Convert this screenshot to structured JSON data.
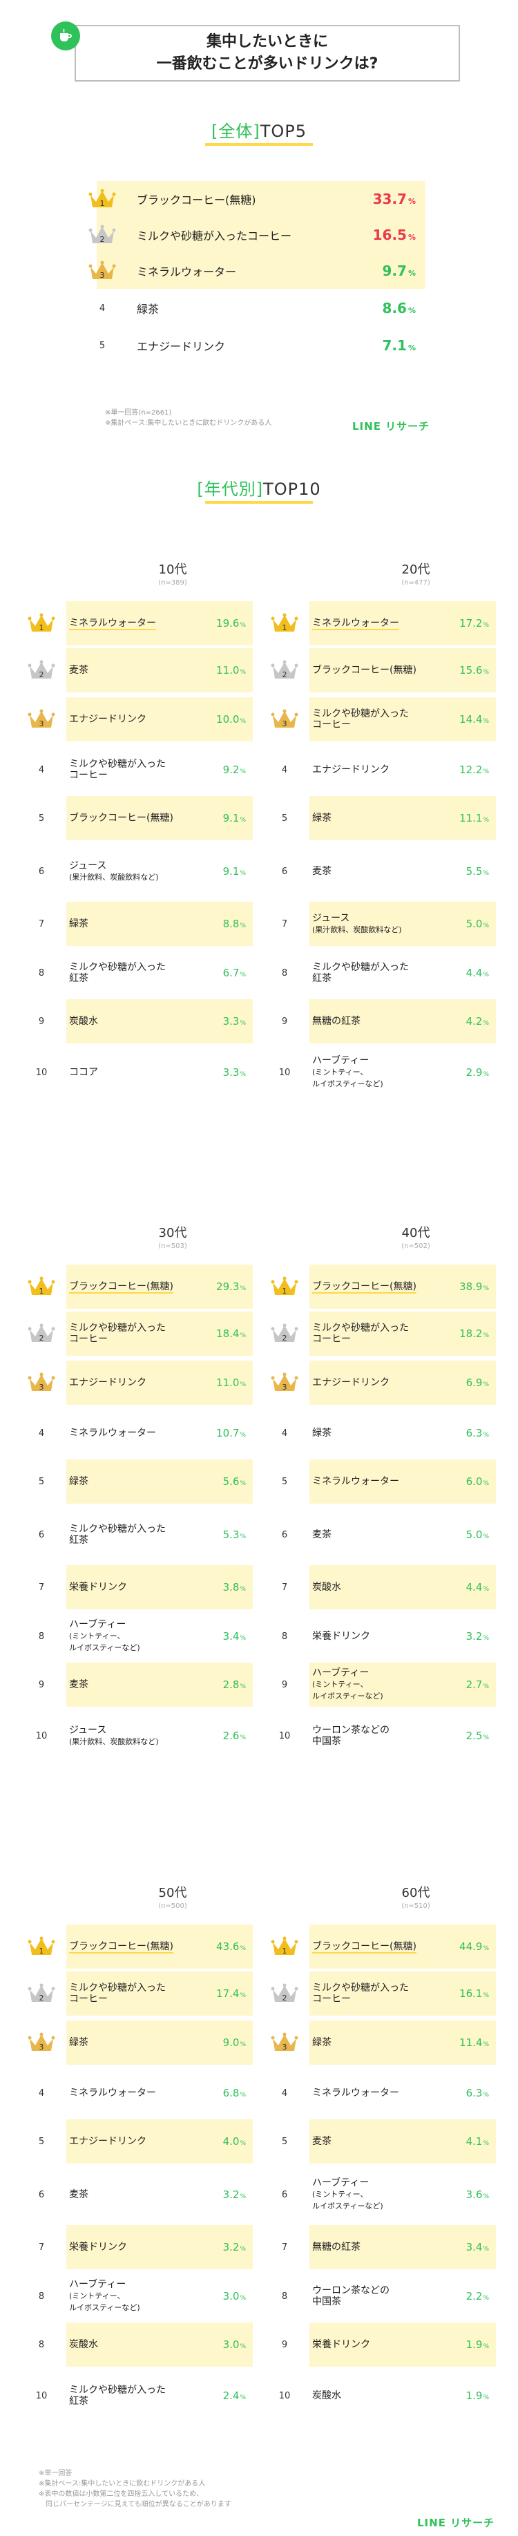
{
  "colors": {
    "green": "#2fc15a",
    "red": "#e8394e",
    "yellow": "#fff7cc",
    "gold": "#f2be1c",
    "silver": "#c6c6c6",
    "bronze": "#e8b64b"
  },
  "header": {
    "line1": "集中したいときに",
    "line2": "一番飲むことが多いドリンクは?"
  },
  "overall": {
    "title_bracket": "[全体]",
    "title": "TOP5",
    "rows": [
      {
        "rank": "1",
        "label": "ブラックコーヒー(無糖)",
        "value": "33.7",
        "unit": "%"
      },
      {
        "rank": "2",
        "label": "ミルクや砂糖が入ったコーヒー",
        "value": "16.5",
        "unit": "%"
      },
      {
        "rank": "3",
        "label": "ミネラルウォーター",
        "value": "9.7",
        "unit": "%"
      },
      {
        "rank": "4",
        "label": "緑茶",
        "value": "8.6",
        "unit": "%"
      },
      {
        "rank": "5",
        "label": "エナジードリンク",
        "value": "7.1",
        "unit": "%"
      }
    ],
    "notes": [
      "※単一回答(n=2661)",
      "※集計ベース:集中したいときに飲むドリンクがある人"
    ],
    "logo": "LINE リサーチ"
  },
  "age": {
    "title_bracket": "[年代別]",
    "title": "TOP10",
    "groups": [
      {
        "name": "10代",
        "n": "(n=389)",
        "rows": [
          {
            "rank": "1",
            "label": "ミネラルウォーター",
            "sub": "",
            "value": "19.6"
          },
          {
            "rank": "2",
            "label": "麦茶",
            "sub": "",
            "value": "11.0"
          },
          {
            "rank": "3",
            "label": "エナジードリンク",
            "sub": "",
            "value": "10.0"
          },
          {
            "rank": "4",
            "label": "ミルクや砂糖が入った",
            "sub": "コーヒー",
            "value": "9.2"
          },
          {
            "rank": "5",
            "label": "ブラックコーヒー(無糖)",
            "sub": "",
            "value": "9.1"
          },
          {
            "rank": "6",
            "label": "ジュース",
            "sub": "(果汁飲料、炭酸飲料など)",
            "value": "9.1"
          },
          {
            "rank": "7",
            "label": "緑茶",
            "sub": "",
            "value": "8.8"
          },
          {
            "rank": "8",
            "label": "ミルクや砂糖が入った",
            "sub": "紅茶",
            "value": "6.7"
          },
          {
            "rank": "9",
            "label": "炭酸水",
            "sub": "",
            "value": "3.3"
          },
          {
            "rank": "10",
            "label": "ココア",
            "sub": "",
            "value": "3.3"
          }
        ]
      },
      {
        "name": "20代",
        "n": "(n=477)",
        "rows": [
          {
            "rank": "1",
            "label": "ミネラルウォーター",
            "sub": "",
            "value": "17.2"
          },
          {
            "rank": "2",
            "label": "ブラックコーヒー(無糖)",
            "sub": "",
            "value": "15.6"
          },
          {
            "rank": "3",
            "label": "ミルクや砂糖が入った",
            "sub": "コーヒー",
            "value": "14.4"
          },
          {
            "rank": "4",
            "label": "エナジードリンク",
            "sub": "",
            "value": "12.2"
          },
          {
            "rank": "5",
            "label": "緑茶",
            "sub": "",
            "value": "11.1"
          },
          {
            "rank": "6",
            "label": "麦茶",
            "sub": "",
            "value": "5.5"
          },
          {
            "rank": "7",
            "label": "ジュース",
            "sub": "(果汁飲料、炭酸飲料など)",
            "value": "5.0"
          },
          {
            "rank": "8",
            "label": "ミルクや砂糖が入った",
            "sub": "紅茶",
            "value": "4.4"
          },
          {
            "rank": "9",
            "label": "無糖の紅茶",
            "sub": "",
            "value": "4.2"
          },
          {
            "rank": "10",
            "label": "ハーブティー",
            "sub": "(ミントティー、|ルイボスティーなど)",
            "value": "2.9"
          }
        ]
      },
      {
        "name": "30代",
        "n": "(n=503)",
        "rows": [
          {
            "rank": "1",
            "label": "ブラックコーヒー(無糖)",
            "sub": "",
            "value": "29.3"
          },
          {
            "rank": "2",
            "label": "ミルクや砂糖が入った",
            "sub": "コーヒー",
            "value": "18.4"
          },
          {
            "rank": "3",
            "label": "エナジードリンク",
            "sub": "",
            "value": "11.0"
          },
          {
            "rank": "4",
            "label": "ミネラルウォーター",
            "sub": "",
            "value": "10.7"
          },
          {
            "rank": "5",
            "label": "緑茶",
            "sub": "",
            "value": "5.6"
          },
          {
            "rank": "6",
            "label": "ミルクや砂糖が入った",
            "sub": "紅茶",
            "value": "5.3"
          },
          {
            "rank": "7",
            "label": "栄養ドリンク",
            "sub": "",
            "value": "3.8"
          },
          {
            "rank": "8",
            "label": "ハーブティー",
            "sub": "(ミントティー、|ルイボスティーなど)",
            "value": "3.4"
          },
          {
            "rank": "9",
            "label": "麦茶",
            "sub": "",
            "value": "2.8"
          },
          {
            "rank": "10",
            "label": "ジュース",
            "sub": "(果汁飲料、炭酸飲料など)",
            "value": "2.6"
          }
        ]
      },
      {
        "name": "40代",
        "n": "(n=502)",
        "rows": [
          {
            "rank": "1",
            "label": "ブラックコーヒー(無糖)",
            "sub": "",
            "value": "38.9"
          },
          {
            "rank": "2",
            "label": "ミルクや砂糖が入った",
            "sub": "コーヒー",
            "value": "18.2"
          },
          {
            "rank": "3",
            "label": "エナジードリンク",
            "sub": "",
            "value": "6.9"
          },
          {
            "rank": "4",
            "label": "緑茶",
            "sub": "",
            "value": "6.3"
          },
          {
            "rank": "5",
            "label": "ミネラルウォーター",
            "sub": "",
            "value": "6.0"
          },
          {
            "rank": "6",
            "label": "麦茶",
            "sub": "",
            "value": "5.0"
          },
          {
            "rank": "7",
            "label": "炭酸水",
            "sub": "",
            "value": "4.4"
          },
          {
            "rank": "8",
            "label": "栄養ドリンク",
            "sub": "",
            "value": "3.2"
          },
          {
            "rank": "9",
            "label": "ハーブティー",
            "sub": "(ミントティー、|ルイボスティーなど)",
            "value": "2.7"
          },
          {
            "rank": "10",
            "label": "ウーロン茶などの",
            "sub": "中国茶",
            "value": "2.5"
          }
        ]
      },
      {
        "name": "50代",
        "n": "(n=500)",
        "rows": [
          {
            "rank": "1",
            "label": "ブラックコーヒー(無糖)",
            "sub": "",
            "value": "43.6"
          },
          {
            "rank": "2",
            "label": "ミルクや砂糖が入った",
            "sub": "コーヒー",
            "value": "17.4"
          },
          {
            "rank": "3",
            "label": "緑茶",
            "sub": "",
            "value": "9.0"
          },
          {
            "rank": "4",
            "label": "ミネラルウォーター",
            "sub": "",
            "value": "6.8"
          },
          {
            "rank": "5",
            "label": "エナジードリンク",
            "sub": "",
            "value": "4.0"
          },
          {
            "rank": "6",
            "label": "麦茶",
            "sub": "",
            "value": "3.2"
          },
          {
            "rank": "7",
            "label": "栄養ドリンク",
            "sub": "",
            "value": "3.2"
          },
          {
            "rank": "8",
            "label": "ハーブティー",
            "sub": "(ミントティー、|ルイボスティーなど)",
            "value": "3.0"
          },
          {
            "rank": "8",
            "label": "炭酸水",
            "sub": "",
            "value": "3.0"
          },
          {
            "rank": "10",
            "label": "ミルクや砂糖が入った",
            "sub": "紅茶",
            "value": "2.4"
          }
        ]
      },
      {
        "name": "60代",
        "n": "(n=510)",
        "rows": [
          {
            "rank": "1",
            "label": "ブラックコーヒー(無糖)",
            "sub": "",
            "value": "44.9"
          },
          {
            "rank": "2",
            "label": "ミルクや砂糖が入った",
            "sub": "コーヒー",
            "value": "16.1"
          },
          {
            "rank": "3",
            "label": "緑茶",
            "sub": "",
            "value": "11.4"
          },
          {
            "rank": "4",
            "label": "ミネラルウォーター",
            "sub": "",
            "value": "6.3"
          },
          {
            "rank": "5",
            "label": "麦茶",
            "sub": "",
            "value": "4.1"
          },
          {
            "rank": "6",
            "label": "ハーブティー",
            "sub": "(ミントティー、|ルイボスティーなど)",
            "value": "3.6"
          },
          {
            "rank": "7",
            "label": "無糖の紅茶",
            "sub": "",
            "value": "3.4"
          },
          {
            "rank": "8",
            "label": "ウーロン茶などの",
            "sub": "中国茶",
            "value": "2.2"
          },
          {
            "rank": "9",
            "label": "栄養ドリンク",
            "sub": "",
            "value": "1.9"
          },
          {
            "rank": "10",
            "label": "炭酸水",
            "sub": "",
            "value": "1.9"
          }
        ]
      }
    ],
    "notes": [
      "※単一回答",
      "※集計ベース:集中したいときに飲むドリンクがある人",
      "※表中の数値は小数第二位を四捨五入しているため、",
      "　同じパーセンテージに見えても順位が異なることがあります"
    ],
    "logo": "LINE リサーチ"
  },
  "chart_data": [
    {
      "type": "table",
      "title": "[全体] TOP5",
      "categories": [
        "ブラックコーヒー(無糖)",
        "ミルクや砂糖が入ったコーヒー",
        "ミネラルウォーター",
        "緑茶",
        "エナジードリンク"
      ],
      "values": [
        33.7,
        16.5,
        9.7,
        8.6,
        7.1
      ]
    },
    {
      "type": "table",
      "title": "10代",
      "values": [
        19.6,
        11.0,
        10.0,
        9.2,
        9.1,
        9.1,
        8.8,
        6.7,
        3.3,
        3.3
      ]
    },
    {
      "type": "table",
      "title": "20代",
      "values": [
        17.2,
        15.6,
        14.4,
        12.2,
        11.1,
        5.5,
        5.0,
        4.4,
        4.2,
        2.9
      ]
    },
    {
      "type": "table",
      "title": "30代",
      "values": [
        29.3,
        18.4,
        11.0,
        10.7,
        5.6,
        5.3,
        3.8,
        3.4,
        2.8,
        2.6
      ]
    },
    {
      "type": "table",
      "title": "40代",
      "values": [
        38.9,
        18.2,
        6.9,
        6.3,
        6.0,
        5.0,
        4.4,
        3.2,
        2.7,
        2.5
      ]
    },
    {
      "type": "table",
      "title": "50代",
      "values": [
        43.6,
        17.4,
        9.0,
        6.8,
        4.0,
        3.2,
        3.2,
        3.0,
        3.0,
        2.4
      ]
    },
    {
      "type": "table",
      "title": "60代",
      "values": [
        44.9,
        16.1,
        11.4,
        6.3,
        4.1,
        3.6,
        3.4,
        2.2,
        1.9,
        1.9
      ]
    }
  ]
}
